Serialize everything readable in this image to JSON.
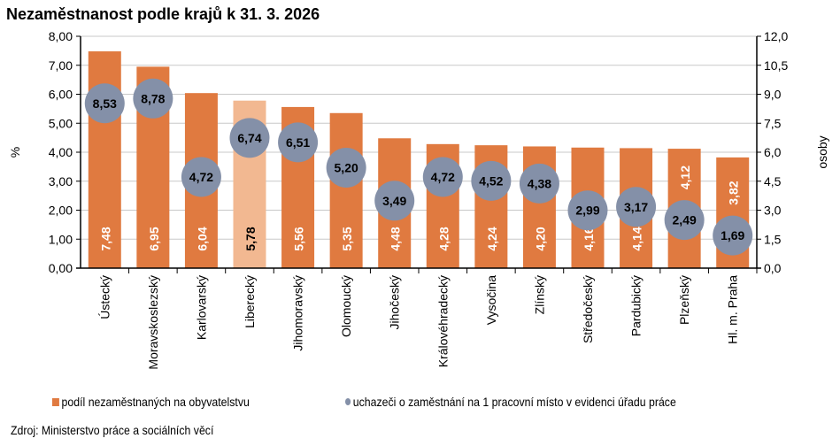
{
  "chart_data": {
    "type": "bar",
    "title": "Nezaměstnanost podle krajů k 31. 3. 2026",
    "ylabel": "%",
    "y2label": "osoby",
    "ylim": [
      0,
      8
    ],
    "y2lim": [
      0,
      12
    ],
    "yticks": [
      "0,00",
      "1,00",
      "2,00",
      "3,00",
      "4,00",
      "5,00",
      "6,00",
      "7,00",
      "8,00"
    ],
    "y2ticks": [
      "0,0",
      "1,5",
      "3,0",
      "4,5",
      "6,0",
      "7,5",
      "9,0",
      "10,5",
      "12,0"
    ],
    "grid": true,
    "legend_placement": "bottom",
    "categories": [
      "Ústecký",
      "Moravskoslezský",
      "Karlovarský",
      "Liberecký",
      "Jihomoravský",
      "Olomoucký",
      "Jihočeský",
      "Královéhradecký",
      "Vysočina",
      "Zlínský",
      "Středočeský",
      "Pardubický",
      "Plzeňský",
      "Hl. m. Praha"
    ],
    "series": [
      {
        "name": "podíl nezaměstnaných na obyvatelstvu",
        "type": "bar",
        "axis": "left",
        "color": "#E07A40",
        "highlight_color": "#F2B891",
        "highlight_index": 3,
        "values": [
          7.48,
          6.95,
          6.04,
          5.78,
          5.56,
          5.35,
          4.48,
          4.28,
          4.24,
          4.2,
          4.16,
          4.14,
          4.12,
          3.82
        ],
        "labels": [
          "7,48",
          "6,95",
          "6,04",
          "5,78",
          "5,56",
          "5,35",
          "4,48",
          "4,28",
          "4,24",
          "4,20",
          "4,16",
          "4,14",
          "4,12",
          "3,82"
        ]
      },
      {
        "name": "uchazeči o zaměstnání na 1 pracovní místo v evidenci úřadu práce",
        "type": "scatter",
        "axis": "right",
        "color": "#8490A8",
        "values": [
          8.53,
          8.78,
          4.72,
          6.74,
          6.51,
          5.2,
          3.49,
          4.72,
          4.52,
          4.38,
          2.99,
          3.17,
          2.49,
          1.69
        ],
        "labels": [
          "8,53",
          "8,78",
          "4,72",
          "6,74",
          "6,51",
          "5,20",
          "3,49",
          "4,72",
          "4,52",
          "4,38",
          "2,99",
          "3,17",
          "2,49",
          "1,69"
        ]
      }
    ]
  },
  "source": "Zdroj: Ministerstvo  práce a sociálních věcí"
}
